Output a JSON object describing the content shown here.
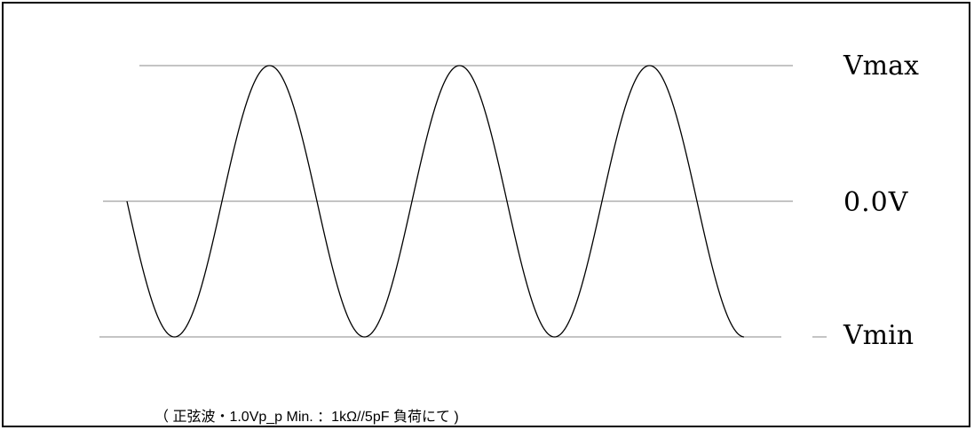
{
  "levels": {
    "max_label": "Vmax",
    "zero_label": "0.0V",
    "min_label": "Vmin"
  },
  "caption": "（ 正弦波・1.0Vp_p Min. ：1kΩ//5pF 負荷にて )",
  "colors": {
    "line": "#000000",
    "reference_line": "#8a8a8a",
    "background": "#ffffff"
  },
  "waveform": {
    "type": "sine",
    "cycles_shown": 3.25,
    "start_phase": "zero-crossing, falling"
  }
}
